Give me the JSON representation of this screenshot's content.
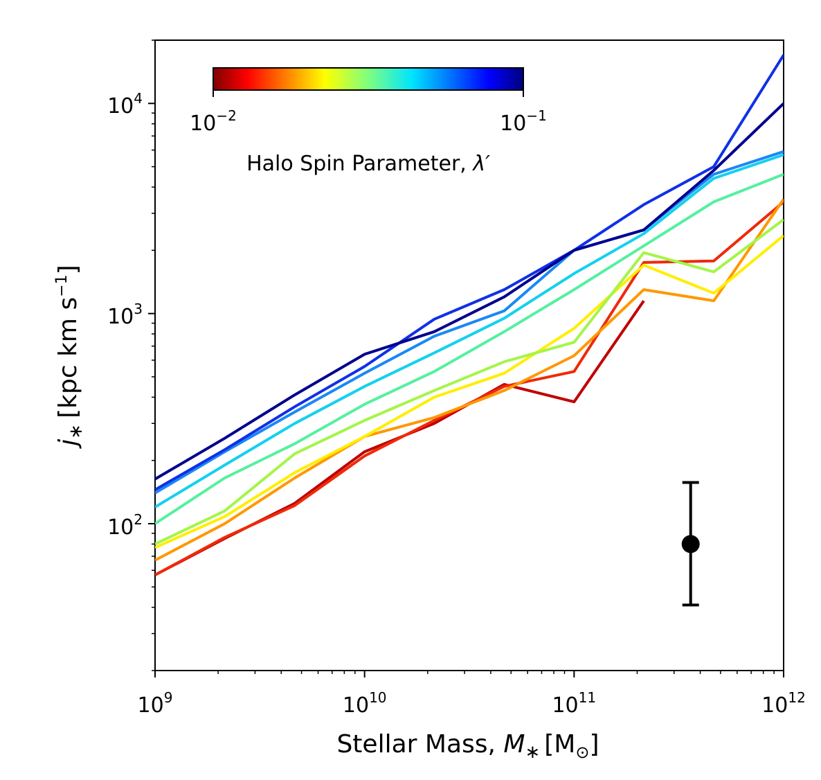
{
  "chart_data": {
    "type": "line",
    "xscale": "log",
    "yscale": "log",
    "xlim": [
      1000000000.0,
      1000000000000.0
    ],
    "ylim": [
      20,
      20000
    ],
    "xlabel": "Stellar Mass, ",
    "xlabel_symbol": "M",
    "xlabel_subscript": "∗",
    "xlabel_unit": "[M",
    "xlabel_unit_sub": "⊙",
    "xlabel_close": "]",
    "ylabel_symbol": "j",
    "ylabel_subscript": "∗",
    "ylabel_unit": "[kpc km s",
    "ylabel_exp": "−1",
    "ylabel_close": "]",
    "x_ticks": [
      {
        "value": 1000000000.0,
        "base": "10",
        "exp": "9"
      },
      {
        "value": 10000000000.0,
        "base": "10",
        "exp": "10"
      },
      {
        "value": 100000000000.0,
        "base": "10",
        "exp": "11"
      },
      {
        "value": 1000000000000.0,
        "base": "10",
        "exp": "12"
      }
    ],
    "y_ticks": [
      {
        "value": 100,
        "base": "10",
        "exp": "2"
      },
      {
        "value": 1000,
        "base": "10",
        "exp": "3"
      },
      {
        "value": 10000,
        "base": "10",
        "exp": "4"
      }
    ],
    "colorbar": {
      "title": "Halo Spin Parameter, ",
      "title_symbol": "λ′",
      "min_label": {
        "base": "10",
        "exp": "−2"
      },
      "max_label": {
        "base": "10",
        "exp": "−1"
      },
      "range": [
        0.01,
        0.1
      ],
      "colormap": "jet"
    },
    "series": [
      {
        "name": "lambda_1",
        "color": "#c00000",
        "x": [
          1000000000.0,
          2150000000.0,
          4640000000.0,
          10000000000.0,
          21500000000.0,
          46400000000.0,
          100000000000.0,
          215000000000.0
        ],
        "y": [
          57,
          85,
          125,
          220,
          300,
          460,
          380,
          1150
        ]
      },
      {
        "name": "lambda_2",
        "color": "#ee2a0a",
        "x": [
          1000000000.0,
          2150000000.0,
          4640000000.0,
          10000000000.0,
          21500000000.0,
          46400000000.0,
          100000000000.0,
          215000000000.0,
          464000000000.0,
          1000000000000.0
        ],
        "y": [
          57,
          86,
          122,
          210,
          310,
          450,
          530,
          1750,
          1780,
          3400
        ]
      },
      {
        "name": "lambda_3",
        "color": "#ff9800",
        "x": [
          1000000000.0,
          2150000000.0,
          4640000000.0,
          10000000000.0,
          21500000000.0,
          46400000000.0,
          100000000000.0,
          215000000000.0,
          464000000000.0,
          1000000000000.0
        ],
        "y": [
          67,
          100,
          165,
          260,
          320,
          430,
          630,
          1300,
          1150,
          3500
        ]
      },
      {
        "name": "lambda_4",
        "color": "#ffee00",
        "x": [
          1000000000.0,
          2150000000.0,
          4640000000.0,
          10000000000.0,
          21500000000.0,
          46400000000.0,
          100000000000.0,
          215000000000.0,
          464000000000.0,
          1000000000000.0
        ],
        "y": [
          77,
          108,
          175,
          260,
          400,
          520,
          850,
          1700,
          1250,
          2350
        ]
      },
      {
        "name": "lambda_5",
        "color": "#a4f548",
        "x": [
          1000000000.0,
          2150000000.0,
          4640000000.0,
          10000000000.0,
          21500000000.0,
          46400000000.0,
          100000000000.0,
          215000000000.0,
          464000000000.0,
          1000000000000.0
        ],
        "y": [
          80,
          115,
          215,
          310,
          430,
          590,
          730,
          1950,
          1580,
          2800
        ]
      },
      {
        "name": "lambda_6",
        "color": "#55f0a0",
        "x": [
          1000000000.0,
          2150000000.0,
          4640000000.0,
          10000000000.0,
          21500000000.0,
          46400000000.0,
          100000000000.0,
          215000000000.0,
          464000000000.0,
          1000000000000.0
        ],
        "y": [
          100,
          165,
          240,
          370,
          530,
          820,
          1300,
          2100,
          3400,
          4600
        ]
      },
      {
        "name": "lambda_7",
        "color": "#15d0ee",
        "x": [
          1000000000.0,
          2150000000.0,
          4640000000.0,
          10000000000.0,
          21500000000.0,
          46400000000.0,
          100000000000.0,
          215000000000.0,
          464000000000.0,
          1000000000000.0
        ],
        "y": [
          120,
          190,
          300,
          450,
          650,
          950,
          1550,
          2400,
          4400,
          5700
        ]
      },
      {
        "name": "lambda_8",
        "color": "#1a88f5",
        "x": [
          1000000000.0,
          2150000000.0,
          4640000000.0,
          10000000000.0,
          21500000000.0,
          46400000000.0,
          100000000000.0,
          215000000000.0,
          464000000000.0,
          1000000000000.0
        ],
        "y": [
          140,
          220,
          340,
          520,
          780,
          1030,
          2000,
          2500,
          4600,
          5900
        ]
      },
      {
        "name": "lambda_9",
        "color": "#1030e8",
        "x": [
          1000000000.0,
          2150000000.0,
          4640000000.0,
          10000000000.0,
          21500000000.0,
          46400000000.0,
          100000000000.0,
          215000000000.0,
          464000000000.0,
          1000000000000.0
        ],
        "y": [
          145,
          225,
          360,
          560,
          940,
          1300,
          2000,
          3300,
          5000,
          17000
        ]
      },
      {
        "name": "lambda_10",
        "color": "#00008e",
        "x": [
          1000000000.0,
          2150000000.0,
          4640000000.0,
          10000000000.0,
          21500000000.0,
          46400000000.0,
          100000000000.0,
          215000000000.0,
          464000000000.0,
          1000000000000.0
        ],
        "y": [
          163,
          255,
          410,
          640,
          820,
          1200,
          2000,
          2500,
          4800,
          10000
        ]
      }
    ],
    "error_bar": {
      "x": 360000000000.0,
      "y": 80,
      "y_low": 41,
      "y_high": 157,
      "color": "#000000"
    }
  }
}
